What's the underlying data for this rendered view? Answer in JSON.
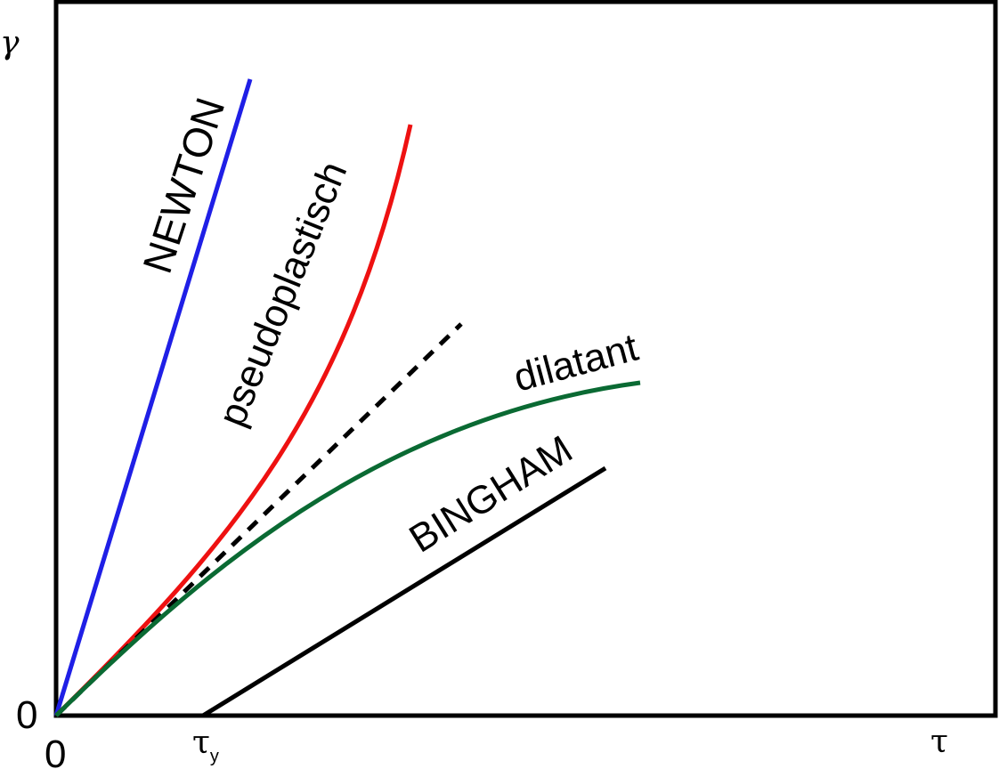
{
  "axes": {
    "y_symbol": "γ",
    "x_symbol": "τ",
    "origin_x_label": "0",
    "origin_y_label": "0",
    "yield_stress_label": "τ",
    "yield_stress_subscript": "y"
  },
  "curves": [
    {
      "id": "newton",
      "label": "NEWTON",
      "color": "#1f1fe6"
    },
    {
      "id": "pseudoplastic",
      "label": "pseudoplastisch",
      "color": "#ee1111"
    },
    {
      "id": "reference",
      "label": "",
      "color": "#000000",
      "style": "dashed"
    },
    {
      "id": "dilatant",
      "label": "dilatant",
      "color": "#0a6a33"
    },
    {
      "id": "bingham",
      "label": "BINGHAM",
      "color": "#000000"
    }
  ],
  "frame": {
    "color": "#000000"
  }
}
